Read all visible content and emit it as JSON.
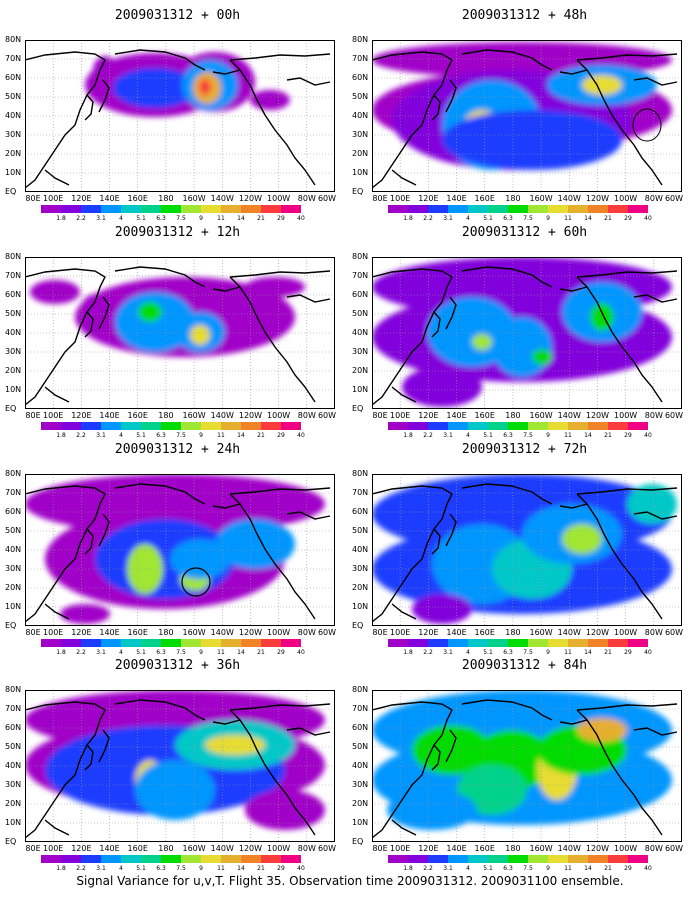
{
  "panels": [
    {
      "title": "2009031312 + 00h"
    },
    {
      "title": "2009031312 + 48h"
    },
    {
      "title": "2009031312 + 12h"
    },
    {
      "title": "2009031312 + 60h"
    },
    {
      "title": "2009031312 + 24h"
    },
    {
      "title": "2009031312 + 72h"
    },
    {
      "title": "2009031312 + 36h"
    },
    {
      "title": "2009031312 + 84h"
    }
  ],
  "axes": {
    "lat_labels": [
      "80N",
      "70N",
      "60N",
      "50N",
      "40N",
      "30N",
      "20N",
      "10N",
      "EQ"
    ],
    "lon_labels": [
      "80E",
      "100E",
      "120E",
      "140E",
      "160E",
      "180",
      "160W",
      "140W",
      "120W",
      "100W",
      "80W",
      "60W"
    ]
  },
  "colorbar": {
    "labels": [
      "1.8",
      "2.2",
      "3.1",
      "4",
      "5.1",
      "6.3",
      "7.5",
      "9",
      "11",
      "14",
      "21",
      "29",
      "40"
    ],
    "colors": [
      "#a000c8",
      "#8200dc",
      "#1e3cff",
      "#0096ff",
      "#00c8c8",
      "#00d28c",
      "#00dc00",
      "#a0e632",
      "#e6dc32",
      "#e6af2d",
      "#f08228",
      "#fa3c3c",
      "#f00082"
    ]
  },
  "caption": "Signal Variance for u,v,T. Flight 35. Observation time 2009031312. 2009031100 ensemble."
}
